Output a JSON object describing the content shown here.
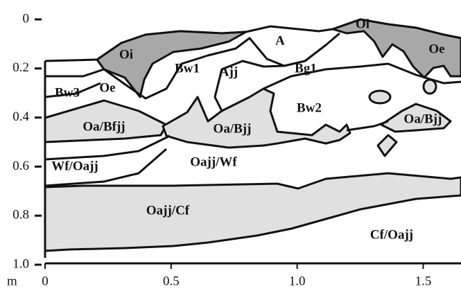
{
  "y_axis": {
    "unit_label": "m",
    "lim": [
      0,
      1
    ],
    "ticks": [
      0,
      0.2,
      0.4,
      0.6,
      0.8,
      {
        "value": 1,
        "label": "1.0"
      }
    ]
  },
  "x_axis": {
    "lim": [
      0,
      1.65
    ],
    "ticks": [
      0,
      0.5,
      {
        "value": 1,
        "label": "1.0"
      },
      1.5
    ]
  },
  "horizons": [
    "Oi",
    "A",
    "Oi",
    "Oe",
    "Bw1",
    "Ajj",
    "Bg1",
    "Bw3",
    "Oe",
    "Bw2",
    "Oa/Bfjj",
    "Oa/Bjj",
    "Oa/Bjj",
    "Wf/Oajj",
    "Oajj/Wf",
    "Oajj/Cf",
    "Cf/Oajj"
  ]
}
